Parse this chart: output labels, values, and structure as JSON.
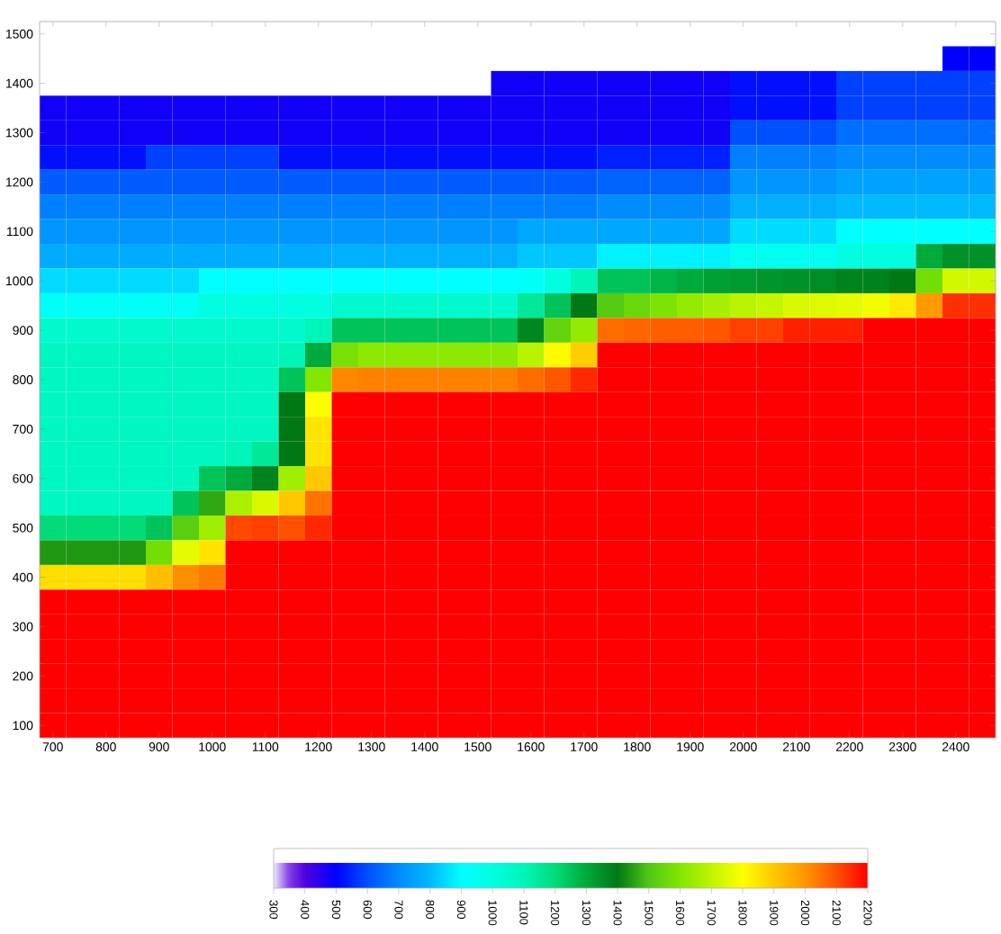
{
  "chart_data": {
    "type": "heatmap",
    "categories": [
      "700",
      null,
      "800",
      null,
      "900",
      null,
      "1000",
      null,
      "1100",
      null,
      "1200",
      null,
      "1300",
      null,
      "1400",
      null,
      "1500",
      null,
      "1600",
      null,
      "1700",
      null,
      "1800",
      null,
      "1900",
      null,
      "2000",
      null,
      "2100",
      null,
      "2200",
      null,
      "2300",
      null,
      "2400",
      null
    ],
    "y_categories": [
      "1500",
      null,
      "1400",
      null,
      "1300",
      null,
      "1200",
      null,
      "1100",
      null,
      "1000",
      null,
      "900",
      null,
      "800",
      null,
      "700",
      null,
      "600",
      null,
      "500",
      null,
      "400",
      null,
      "300",
      null,
      "200",
      null,
      "100"
    ],
    "cells": [
      [
        null,
        null,
        null,
        null,
        null,
        null,
        null,
        null,
        null,
        null,
        null,
        null,
        null,
        null,
        null,
        null,
        null,
        null,
        null,
        null,
        null,
        null,
        null,
        null,
        null,
        null,
        null,
        null,
        null,
        null,
        null,
        null,
        null,
        null,
        null,
        null
      ],
      [
        null,
        null,
        null,
        null,
        null,
        null,
        null,
        null,
        null,
        null,
        null,
        null,
        null,
        null,
        null,
        null,
        null,
        null,
        null,
        null,
        null,
        null,
        null,
        null,
        null,
        null,
        null,
        null,
        null,
        null,
        null,
        null,
        null,
        null,
        500,
        500
      ],
      [
        null,
        null,
        null,
        null,
        null,
        null,
        null,
        null,
        null,
        null,
        null,
        null,
        null,
        null,
        null,
        null,
        null,
        480,
        480,
        480,
        480,
        480,
        480,
        480,
        480,
        480,
        520,
        520,
        520,
        520,
        580,
        580,
        580,
        580,
        580,
        580
      ],
      [
        480,
        480,
        480,
        480,
        480,
        480,
        480,
        480,
        480,
        480,
        480,
        480,
        480,
        480,
        480,
        480,
        480,
        480,
        480,
        480,
        480,
        480,
        480,
        480,
        480,
        480,
        520,
        520,
        520,
        520,
        580,
        580,
        580,
        580,
        580,
        580
      ],
      [
        480,
        480,
        480,
        480,
        480,
        480,
        480,
        480,
        480,
        480,
        480,
        480,
        480,
        480,
        480,
        480,
        480,
        480,
        480,
        480,
        480,
        480,
        480,
        480,
        480,
        480,
        600,
        600,
        600,
        600,
        650,
        650,
        650,
        650,
        650,
        650
      ],
      [
        520,
        520,
        520,
        520,
        580,
        580,
        580,
        580,
        580,
        520,
        520,
        520,
        520,
        520,
        520,
        520,
        520,
        520,
        520,
        520,
        520,
        540,
        540,
        540,
        540,
        540,
        680,
        680,
        680,
        680,
        700,
        700,
        700,
        700,
        700,
        700
      ],
      [
        620,
        620,
        620,
        620,
        620,
        620,
        620,
        620,
        620,
        620,
        620,
        620,
        620,
        620,
        620,
        620,
        620,
        620,
        620,
        620,
        620,
        630,
        630,
        630,
        630,
        630,
        720,
        720,
        720,
        720,
        750,
        750,
        750,
        750,
        750,
        750
      ],
      [
        680,
        680,
        680,
        680,
        680,
        680,
        680,
        680,
        680,
        680,
        680,
        680,
        680,
        680,
        680,
        680,
        680,
        680,
        680,
        680,
        680,
        700,
        700,
        700,
        700,
        700,
        780,
        780,
        780,
        780,
        800,
        800,
        800,
        800,
        800,
        800
      ],
      [
        720,
        720,
        720,
        720,
        720,
        720,
        720,
        720,
        720,
        720,
        720,
        720,
        720,
        720,
        720,
        720,
        720,
        720,
        760,
        760,
        760,
        760,
        760,
        760,
        760,
        760,
        850,
        850,
        850,
        850,
        900,
        900,
        900,
        900,
        900,
        900
      ],
      [
        770,
        770,
        770,
        770,
        770,
        770,
        770,
        770,
        770,
        770,
        770,
        780,
        780,
        780,
        780,
        780,
        780,
        780,
        820,
        820,
        820,
        880,
        880,
        880,
        880,
        880,
        950,
        950,
        950,
        950,
        1000,
        1000,
        1000,
        1300,
        1350,
        1350
      ],
      [
        850,
        850,
        850,
        850,
        850,
        850,
        900,
        900,
        900,
        900,
        900,
        900,
        900,
        900,
        900,
        900,
        900,
        900,
        920,
        1000,
        1100,
        1250,
        1250,
        1280,
        1300,
        1320,
        1330,
        1340,
        1350,
        1360,
        1380,
        1380,
        1400,
        1570,
        1730,
        1730
      ],
      [
        930,
        930,
        930,
        930,
        930,
        930,
        1000,
        1000,
        1000,
        1000,
        1000,
        1050,
        1050,
        1050,
        1050,
        1050,
        1050,
        1050,
        1150,
        1250,
        1400,
        1510,
        1550,
        1590,
        1630,
        1660,
        1690,
        1710,
        1740,
        1750,
        1760,
        1780,
        1840,
        1990,
        2140,
        2140
      ],
      [
        1050,
        1050,
        1050,
        1050,
        1050,
        1050,
        1050,
        1050,
        1050,
        1050,
        1100,
        1250,
        1250,
        1250,
        1250,
        1250,
        1250,
        1250,
        1370,
        1540,
        1630,
        2060,
        2070,
        2080,
        2080,
        2090,
        2120,
        2120,
        2160,
        2160,
        2160,
        2200,
        2200,
        2200,
        2200,
        2200
      ],
      [
        1080,
        1080,
        1080,
        1080,
        1080,
        1080,
        1080,
        1080,
        1080,
        1100,
        1300,
        1580,
        1620,
        1620,
        1620,
        1620,
        1620,
        1620,
        1690,
        1810,
        1890,
        2200,
        2200,
        2200,
        2200,
        2200,
        2200,
        2200,
        2200,
        2200,
        2200,
        2200,
        2200,
        2200,
        2200,
        2200
      ],
      [
        1080,
        1080,
        1080,
        1080,
        1080,
        1080,
        1080,
        1080,
        1080,
        1250,
        1600,
        2020,
        2030,
        2030,
        2030,
        2030,
        2030,
        2030,
        2060,
        2090,
        2150,
        2200,
        2200,
        2200,
        2200,
        2200,
        2200,
        2200,
        2200,
        2200,
        2200,
        2200,
        2200,
        2200,
        2200,
        2200
      ],
      [
        1080,
        1080,
        1080,
        1080,
        1080,
        1080,
        1080,
        1080,
        1080,
        1400,
        1800,
        2200,
        2200,
        2200,
        2200,
        2200,
        2200,
        2200,
        2200,
        2200,
        2200,
        2200,
        2200,
        2200,
        2200,
        2200,
        2200,
        2200,
        2200,
        2200,
        2200,
        2200,
        2200,
        2200,
        2200,
        2200
      ],
      [
        1080,
        1080,
        1080,
        1080,
        1080,
        1080,
        1080,
        1080,
        1080,
        1400,
        1850,
        2200,
        2200,
        2200,
        2200,
        2200,
        2200,
        2200,
        2200,
        2200,
        2200,
        2200,
        2200,
        2200,
        2200,
        2200,
        2200,
        2200,
        2200,
        2200,
        2200,
        2200,
        2200,
        2200,
        2200,
        2200
      ],
      [
        1080,
        1080,
        1080,
        1080,
        1080,
        1080,
        1080,
        1100,
        1150,
        1400,
        1850,
        2200,
        2200,
        2200,
        2200,
        2200,
        2200,
        2200,
        2200,
        2200,
        2200,
        2200,
        2200,
        2200,
        2200,
        2200,
        2200,
        2200,
        2200,
        2200,
        2200,
        2200,
        2200,
        2200,
        2200,
        2200
      ],
      [
        1080,
        1080,
        1080,
        1080,
        1080,
        1080,
        1250,
        1300,
        1380,
        1650,
        1900,
        2200,
        2200,
        2200,
        2200,
        2200,
        2200,
        2200,
        2200,
        2200,
        2200,
        2200,
        2200,
        2200,
        2200,
        2200,
        2200,
        2200,
        2200,
        2200,
        2200,
        2200,
        2200,
        2200,
        2200,
        2200
      ],
      [
        1080,
        1080,
        1080,
        1080,
        1080,
        1250,
        1460,
        1670,
        1740,
        1900,
        2050,
        2200,
        2200,
        2200,
        2200,
        2200,
        2200,
        2200,
        2200,
        2200,
        2200,
        2200,
        2200,
        2200,
        2200,
        2200,
        2200,
        2200,
        2200,
        2200,
        2200,
        2200,
        2200,
        2200,
        2200,
        2200
      ],
      [
        1200,
        1200,
        1200,
        1200,
        1250,
        1520,
        1650,
        2110,
        2120,
        2100,
        2150,
        2200,
        2200,
        2200,
        2200,
        2200,
        2200,
        2200,
        2200,
        2200,
        2200,
        2200,
        2200,
        2200,
        2200,
        2200,
        2200,
        2200,
        2200,
        2200,
        2200,
        2200,
        2200,
        2200,
        2200,
        2200
      ],
      [
        1440,
        1440,
        1440,
        1440,
        1570,
        1760,
        1850,
        2200,
        2200,
        2200,
        2200,
        2200,
        2200,
        2200,
        2200,
        2200,
        2200,
        2200,
        2200,
        2200,
        2200,
        2200,
        2200,
        2200,
        2200,
        2200,
        2200,
        2200,
        2200,
        2200,
        2200,
        2200,
        2200,
        2200,
        2200,
        2200
      ],
      [
        1860,
        1860,
        1860,
        1860,
        1920,
        2010,
        2040,
        2200,
        2200,
        2200,
        2200,
        2200,
        2200,
        2200,
        2200,
        2200,
        2200,
        2200,
        2200,
        2200,
        2200,
        2200,
        2200,
        2200,
        2200,
        2200,
        2200,
        2200,
        2200,
        2200,
        2200,
        2200,
        2200,
        2200,
        2200,
        2200
      ],
      [
        2200,
        2200,
        2200,
        2200,
        2200,
        2200,
        2200,
        2200,
        2200,
        2200,
        2200,
        2200,
        2200,
        2200,
        2200,
        2200,
        2200,
        2200,
        2200,
        2200,
        2200,
        2200,
        2200,
        2200,
        2200,
        2200,
        2200,
        2200,
        2200,
        2200,
        2200,
        2200,
        2200,
        2200,
        2200,
        2200
      ],
      [
        2200,
        2200,
        2200,
        2200,
        2200,
        2200,
        2200,
        2200,
        2200,
        2200,
        2200,
        2200,
        2200,
        2200,
        2200,
        2200,
        2200,
        2200,
        2200,
        2200,
        2200,
        2200,
        2200,
        2200,
        2200,
        2200,
        2200,
        2200,
        2200,
        2200,
        2200,
        2200,
        2200,
        2200,
        2200,
        2200
      ],
      [
        2200,
        2200,
        2200,
        2200,
        2200,
        2200,
        2200,
        2200,
        2200,
        2200,
        2200,
        2200,
        2200,
        2200,
        2200,
        2200,
        2200,
        2200,
        2200,
        2200,
        2200,
        2200,
        2200,
        2200,
        2200,
        2200,
        2200,
        2200,
        2200,
        2200,
        2200,
        2200,
        2200,
        2200,
        2200,
        2200
      ],
      [
        2200,
        2200,
        2200,
        2200,
        2200,
        2200,
        2200,
        2200,
        2200,
        2200,
        2200,
        2200,
        2200,
        2200,
        2200,
        2200,
        2200,
        2200,
        2200,
        2200,
        2200,
        2200,
        2200,
        2200,
        2200,
        2200,
        2200,
        2200,
        2200,
        2200,
        2200,
        2200,
        2200,
        2200,
        2200,
        2200
      ],
      [
        2200,
        2200,
        2200,
        2200,
        2200,
        2200,
        2200,
        2200,
        2200,
        2200,
        2200,
        2200,
        2200,
        2200,
        2200,
        2200,
        2200,
        2200,
        2200,
        2200,
        2200,
        2200,
        2200,
        2200,
        2200,
        2200,
        2200,
        2200,
        2200,
        2200,
        2200,
        2200,
        2200,
        2200,
        2200,
        2200
      ],
      [
        2200,
        2200,
        2200,
        2200,
        2200,
        2200,
        2200,
        2200,
        2200,
        2200,
        2200,
        2200,
        2200,
        2200,
        2200,
        2200,
        2200,
        2200,
        2200,
        2200,
        2200,
        2200,
        2200,
        2200,
        2200,
        2200,
        2200,
        2200,
        2200,
        2200,
        2200,
        2200,
        2200,
        2200,
        2200,
        2200
      ]
    ],
    "clim": [
      300,
      2200
    ],
    "cticks": [
      300,
      400,
      500,
      600,
      700,
      800,
      900,
      1000,
      1100,
      1200,
      1300,
      1400,
      1500,
      1600,
      1700,
      1800,
      1900,
      2000,
      2100,
      2200
    ]
  }
}
